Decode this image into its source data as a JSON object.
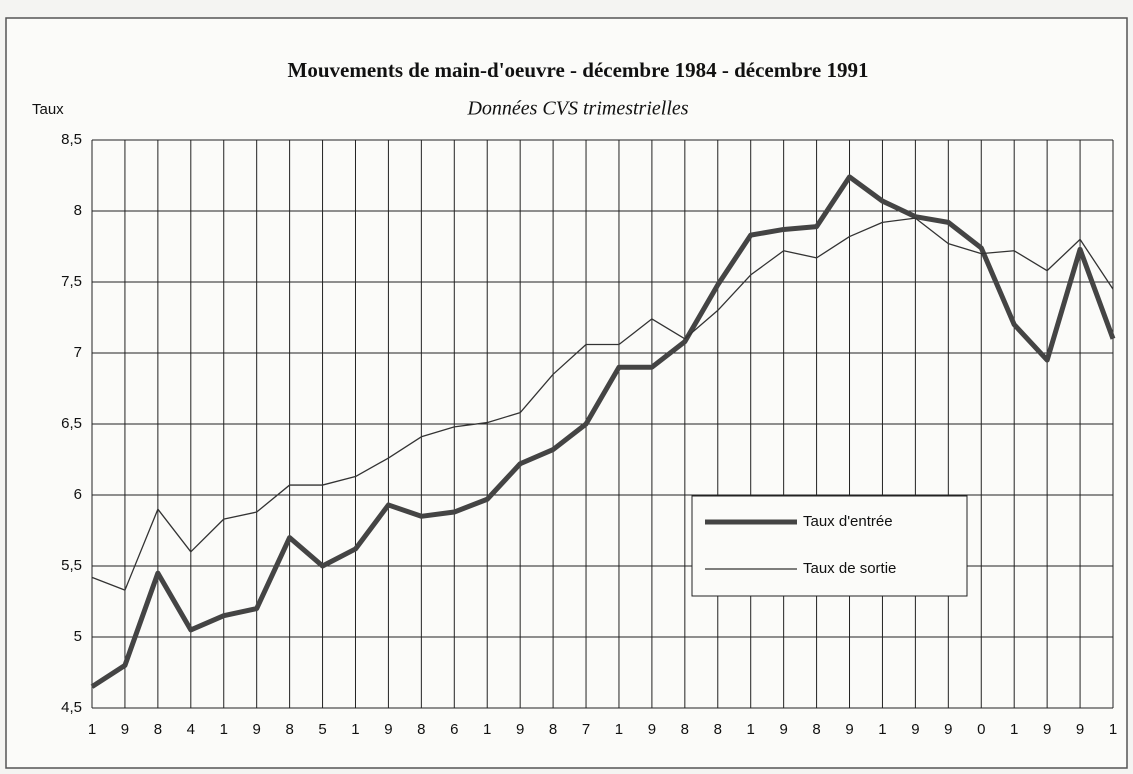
{
  "chart_data": {
    "type": "line",
    "title": "Mouvements de main-d'oeuvre - décembre 1984 -  décembre 1991",
    "subtitle": "Données CVS trimestrielles",
    "ylabel": "Taux",
    "categories": [
      "1",
      "9",
      "8",
      "4",
      "1",
      "9",
      "8",
      "5",
      "1",
      "9",
      "8",
      "6",
      "1",
      "9",
      "8",
      "7",
      "1",
      "9",
      "8",
      "8",
      "1",
      "9",
      "8",
      "9",
      "1",
      "9",
      "9",
      "0",
      "1",
      "9",
      "9",
      "1"
    ],
    "series": [
      {
        "name": "Taux d'entrée",
        "color": "#444444",
        "width": 5,
        "values": [
          4.65,
          4.8,
          5.45,
          5.05,
          5.15,
          5.2,
          5.7,
          5.5,
          5.62,
          5.93,
          5.85,
          5.88,
          5.97,
          6.22,
          6.32,
          6.5,
          6.9,
          6.9,
          7.08,
          7.48,
          7.83,
          7.87,
          7.89,
          8.24,
          8.07,
          7.96,
          7.92,
          7.74,
          7.2,
          6.95,
          7.73,
          7.1
        ]
      },
      {
        "name": "Taux de sortie",
        "color": "#333333",
        "width": 1.3,
        "values": [
          5.42,
          5.33,
          5.9,
          5.6,
          5.83,
          5.88,
          6.07,
          6.07,
          6.13,
          6.26,
          6.41,
          6.48,
          6.51,
          6.58,
          6.85,
          7.06,
          7.06,
          7.24,
          7.1,
          7.3,
          7.55,
          7.72,
          7.67,
          7.82,
          7.92,
          7.95,
          7.77,
          7.7,
          7.72,
          7.58,
          7.8,
          7.45
        ]
      }
    ],
    "ylim": [
      4.5,
      8.5
    ],
    "yticks": [
      {
        "value": 4.5,
        "label": "4,5"
      },
      5,
      {
        "value": 5.5,
        "label": "5,5"
      },
      6,
      {
        "value": 6.5,
        "label": "6,5"
      },
      7,
      {
        "value": 7.5,
        "label": "7,5"
      },
      8,
      {
        "value": 8.5,
        "label": "8,5"
      }
    ],
    "grid": true
  }
}
